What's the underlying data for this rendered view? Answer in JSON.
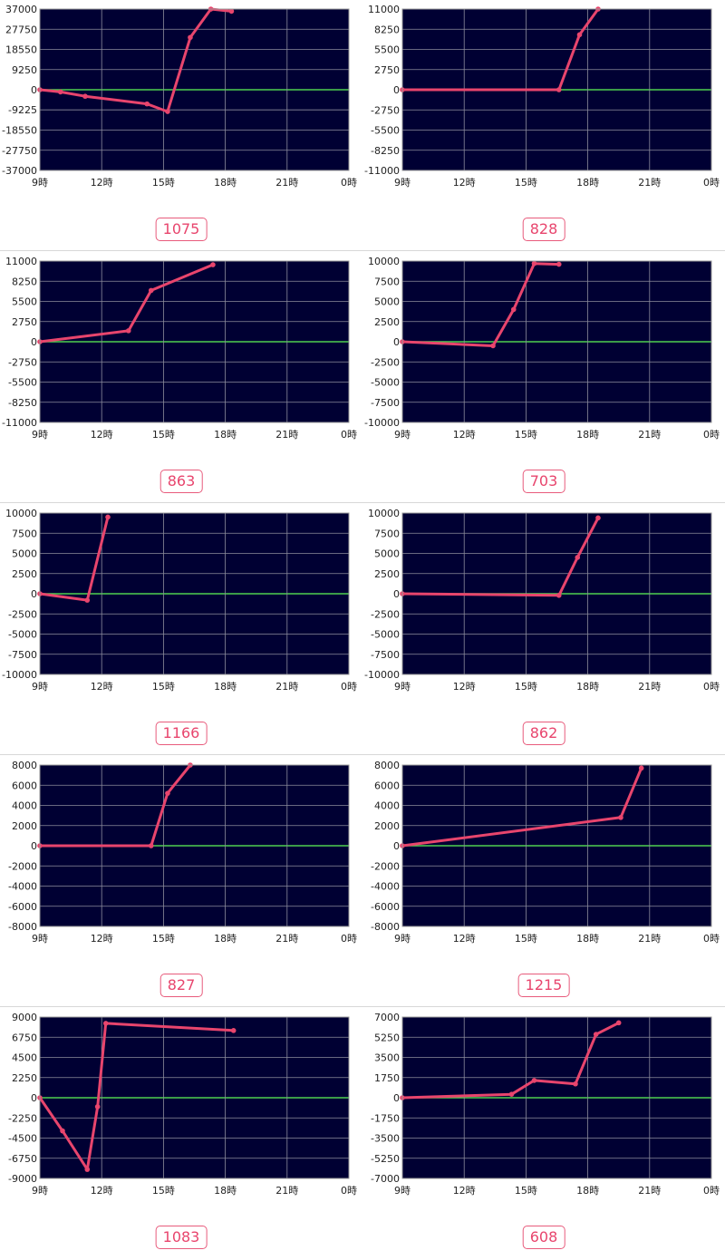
{
  "colors": {
    "plot_bg": "#000033",
    "grid": "#8c8c9c",
    "zero_line": "#4fd04f",
    "series": "#e8456d",
    "badge": "#e8456d"
  },
  "x_tick_labels": [
    "9時",
    "12時",
    "15時",
    "18時",
    "21時",
    "0時"
  ],
  "chart_data": [
    {
      "type": "line",
      "grid": true,
      "xlim": [
        9,
        24
      ],
      "ylim": [
        -37000,
        37000
      ],
      "y_ticks": [
        37000,
        27750,
        18550,
        9250,
        0,
        -9225,
        -18550,
        -27750,
        -37000
      ],
      "y_tick_labels": [
        "37000",
        "27750",
        "18550",
        "9250",
        "0",
        "-9225",
        "-18550",
        "-27750",
        "-37000"
      ],
      "x": [
        9,
        10,
        11.2,
        14.2,
        15.2,
        16.3,
        17.3,
        18.3
      ],
      "y": [
        0,
        -1000,
        -3000,
        -6500,
        -10000,
        24000,
        37000,
        36000
      ],
      "badge": "1075"
    },
    {
      "type": "line",
      "grid": true,
      "xlim": [
        9,
        24
      ],
      "ylim": [
        -11000,
        11000
      ],
      "y_ticks": [
        11000,
        8250,
        5500,
        2750,
        0,
        -2750,
        -5500,
        -8250,
        -11000
      ],
      "y_tick_labels": [
        "11000",
        "8250",
        "5500",
        "2750",
        "0",
        "-2750",
        "-5500",
        "-8250",
        "-11000"
      ],
      "x": [
        9,
        16.6,
        17.6,
        18.5
      ],
      "y": [
        0,
        0,
        7500,
        11000
      ],
      "badge": "828"
    },
    {
      "type": "line",
      "grid": true,
      "xlim": [
        9,
        24
      ],
      "ylim": [
        -11000,
        11000
      ],
      "y_ticks": [
        11000,
        8250,
        5500,
        2750,
        0,
        -2750,
        -5500,
        -8250,
        -11000
      ],
      "y_tick_labels": [
        "11000",
        "8250",
        "5500",
        "2750",
        "0",
        "-2750",
        "-5500",
        "-8250",
        "-11000"
      ],
      "x": [
        9,
        13.3,
        14.4,
        17.4
      ],
      "y": [
        0,
        1500,
        7000,
        10500
      ],
      "badge": "863"
    },
    {
      "type": "line",
      "grid": true,
      "xlim": [
        9,
        24
      ],
      "ylim": [
        -10000,
        10000
      ],
      "y_ticks": [
        10000,
        7500,
        5000,
        2500,
        0,
        -2500,
        -5000,
        -7500,
        -10000
      ],
      "y_tick_labels": [
        "10000",
        "7500",
        "5000",
        "2500",
        "0",
        "-2500",
        "-5000",
        "-7500",
        "-10000"
      ],
      "x": [
        9,
        13.4,
        14.4,
        15.4,
        16.6
      ],
      "y": [
        0,
        -500,
        4000,
        9700,
        9600
      ],
      "badge": "703"
    },
    {
      "type": "line",
      "grid": true,
      "xlim": [
        9,
        24
      ],
      "ylim": [
        -10000,
        10000
      ],
      "y_ticks": [
        10000,
        7500,
        5000,
        2500,
        0,
        -2500,
        -5000,
        -7500,
        -10000
      ],
      "y_tick_labels": [
        "10000",
        "7500",
        "5000",
        "2500",
        "0",
        "-2500",
        "-5000",
        "-7500",
        "-10000"
      ],
      "x": [
        9,
        11.3,
        12.3
      ],
      "y": [
        0,
        -800,
        9500
      ],
      "badge": "1166"
    },
    {
      "type": "line",
      "grid": true,
      "xlim": [
        9,
        24
      ],
      "ylim": [
        -10000,
        10000
      ],
      "y_ticks": [
        10000,
        7500,
        5000,
        2500,
        0,
        -2500,
        -5000,
        -7500,
        -10000
      ],
      "y_tick_labels": [
        "10000",
        "7500",
        "5000",
        "2500",
        "0",
        "-2500",
        "-5000",
        "-7500",
        "-10000"
      ],
      "x": [
        9,
        16.6,
        17.5,
        18.5
      ],
      "y": [
        0,
        -200,
        4500,
        9400
      ],
      "badge": "862"
    },
    {
      "type": "line",
      "grid": true,
      "xlim": [
        9,
        24
      ],
      "ylim": [
        -8000,
        8000
      ],
      "y_ticks": [
        8000,
        6000,
        4000,
        2000,
        0,
        -2000,
        -4000,
        -6000,
        -8000
      ],
      "y_tick_labels": [
        "8000",
        "6000",
        "4000",
        "2000",
        "0",
        "-2000",
        "-4000",
        "-6000",
        "-8000"
      ],
      "x": [
        9,
        14.4,
        15.2,
        16.3
      ],
      "y": [
        0,
        0,
        5200,
        8000
      ],
      "badge": "827"
    },
    {
      "type": "line",
      "grid": true,
      "xlim": [
        9,
        24
      ],
      "ylim": [
        -8000,
        8000
      ],
      "y_ticks": [
        8000,
        6000,
        4000,
        2000,
        0,
        -2000,
        -4000,
        -6000,
        -8000
      ],
      "y_tick_labels": [
        "8000",
        "6000",
        "4000",
        "2000",
        "0",
        "-2000",
        "-4000",
        "-6000",
        "-8000"
      ],
      "x": [
        9,
        19.6,
        20.6
      ],
      "y": [
        0,
        2800,
        7700
      ],
      "badge": "1215"
    },
    {
      "type": "line",
      "grid": true,
      "xlim": [
        9,
        24
      ],
      "ylim": [
        -9000,
        9000
      ],
      "y_ticks": [
        9000,
        6750,
        4500,
        2250,
        0,
        -2250,
        -4500,
        -6750,
        -9000
      ],
      "y_tick_labels": [
        "9000",
        "6750",
        "4500",
        "2250",
        "0",
        "-2250",
        "-4500",
        "-6750",
        "-9000"
      ],
      "x": [
        9,
        10.1,
        11.3,
        11.8,
        12.2,
        18.4
      ],
      "y": [
        0,
        -3700,
        -8000,
        -1000,
        8300,
        7500
      ],
      "badge": "1083"
    },
    {
      "type": "line",
      "grid": true,
      "xlim": [
        9,
        24
      ],
      "ylim": [
        -7000,
        7000
      ],
      "y_ticks": [
        7000,
        5250,
        3500,
        1750,
        0,
        -1750,
        -3500,
        -5250,
        -7000
      ],
      "y_tick_labels": [
        "7000",
        "5250",
        "3500",
        "1750",
        "0",
        "-1750",
        "-3500",
        "-5250",
        "-7000"
      ],
      "x": [
        9,
        14.3,
        15.4,
        17.4,
        18.4,
        19.5
      ],
      "y": [
        0,
        300,
        1500,
        1200,
        5500,
        6500
      ],
      "badge": "608"
    }
  ]
}
